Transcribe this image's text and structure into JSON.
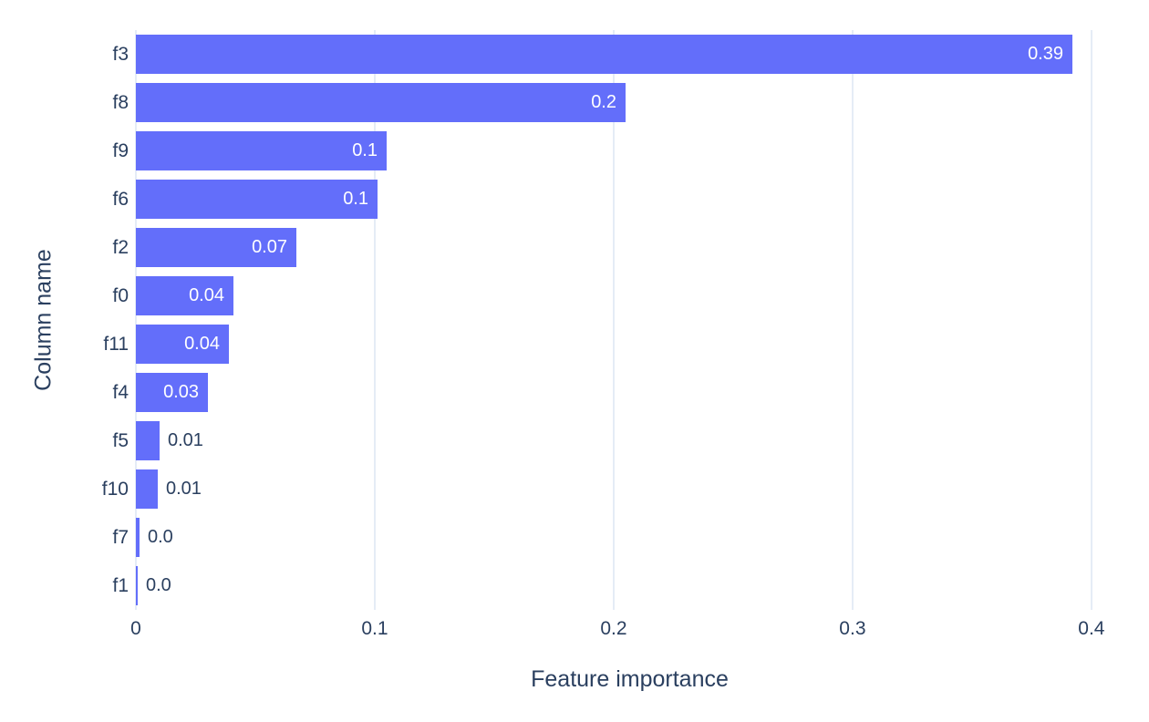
{
  "chart_data": {
    "type": "bar",
    "orientation": "horizontal",
    "title": "",
    "xlabel": "Feature importance",
    "ylabel": "Column name",
    "categories": [
      "f3",
      "f8",
      "f9",
      "f6",
      "f2",
      "f0",
      "f11",
      "f4",
      "f5",
      "f10",
      "f7",
      "f1"
    ],
    "values": [
      0.392,
      0.205,
      0.105,
      0.101,
      0.067,
      0.041,
      0.039,
      0.03,
      0.01,
      0.009,
      0.0015,
      0.0008
    ],
    "value_labels": [
      "0.39",
      "0.2",
      "0.1",
      "0.1",
      "0.07",
      "0.04",
      "0.04",
      "0.03",
      "0.01",
      "0.01",
      "0.0",
      "0.0"
    ],
    "xticks": {
      "values": [
        0,
        0.1,
        0.2,
        0.3,
        0.4
      ],
      "labels": [
        "0",
        "0.1",
        "0.2",
        "0.3",
        "0.4"
      ]
    },
    "xlim": [
      0,
      0.4134
    ],
    "grid": true,
    "legend": "none",
    "colors": {
      "bar": "#636efa",
      "text": "#2a3f5f",
      "grid": "#e5ecf6",
      "zeroline": "#e5ecf6",
      "label_inside": "#ffffff",
      "label_outside": "#2a3f5f",
      "background": "#ffffff"
    }
  }
}
